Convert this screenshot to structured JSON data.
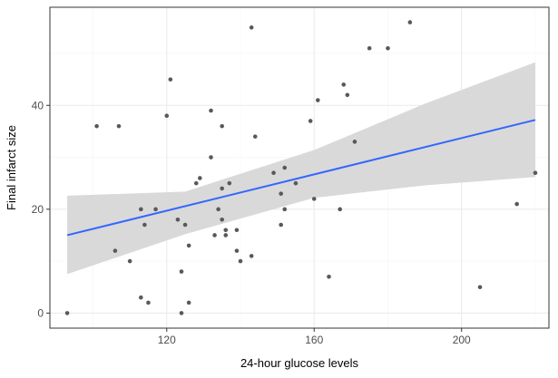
{
  "chart_data": {
    "type": "scatter",
    "xlabel": "24-hour glucose levels",
    "ylabel": "Final infarct size",
    "xlim": [
      88.3,
      223.7
    ],
    "ylim": [
      -2.9,
      58.9
    ],
    "xticks": [
      120,
      160,
      200
    ],
    "yticks": [
      0,
      20,
      40
    ],
    "grid": true,
    "panel_border": true,
    "colors": {
      "point": "#595959",
      "fit_line": "#3366ff",
      "ribbon": "#d9d9d9",
      "grid_major": "#ebebeb",
      "grid_minor": "#f5f5f5",
      "border": "#333333"
    },
    "points": [
      {
        "x": 93,
        "y": 0
      },
      {
        "x": 101,
        "y": 36
      },
      {
        "x": 107,
        "y": 36
      },
      {
        "x": 106,
        "y": 12
      },
      {
        "x": 110,
        "y": 10
      },
      {
        "x": 113,
        "y": 20
      },
      {
        "x": 114,
        "y": 17
      },
      {
        "x": 113,
        "y": 3
      },
      {
        "x": 115,
        "y": 2
      },
      {
        "x": 117,
        "y": 20
      },
      {
        "x": 120,
        "y": 38
      },
      {
        "x": 121,
        "y": 45
      },
      {
        "x": 123,
        "y": 18
      },
      {
        "x": 124,
        "y": 0
      },
      {
        "x": 124,
        "y": 8
      },
      {
        "x": 125,
        "y": 17
      },
      {
        "x": 126,
        "y": 13
      },
      {
        "x": 126,
        "y": 2
      },
      {
        "x": 128,
        "y": 25
      },
      {
        "x": 129,
        "y": 26
      },
      {
        "x": 132,
        "y": 39
      },
      {
        "x": 132,
        "y": 30
      },
      {
        "x": 133,
        "y": 15
      },
      {
        "x": 134,
        "y": 20
      },
      {
        "x": 135,
        "y": 36
      },
      {
        "x": 135,
        "y": 24
      },
      {
        "x": 135,
        "y": 18
      },
      {
        "x": 136,
        "y": 16
      },
      {
        "x": 136,
        "y": 15
      },
      {
        "x": 137,
        "y": 25
      },
      {
        "x": 139,
        "y": 16
      },
      {
        "x": 139,
        "y": 12
      },
      {
        "x": 140,
        "y": 10
      },
      {
        "x": 143,
        "y": 11
      },
      {
        "x": 143,
        "y": 55
      },
      {
        "x": 144,
        "y": 34
      },
      {
        "x": 149,
        "y": 27
      },
      {
        "x": 151,
        "y": 23
      },
      {
        "x": 151,
        "y": 17
      },
      {
        "x": 152,
        "y": 20
      },
      {
        "x": 152,
        "y": 28
      },
      {
        "x": 155,
        "y": 25
      },
      {
        "x": 159,
        "y": 37
      },
      {
        "x": 160,
        "y": 22
      },
      {
        "x": 161,
        "y": 41
      },
      {
        "x": 164,
        "y": 7
      },
      {
        "x": 167,
        "y": 20
      },
      {
        "x": 168,
        "y": 44
      },
      {
        "x": 169,
        "y": 42
      },
      {
        "x": 171,
        "y": 33
      },
      {
        "x": 175,
        "y": 51
      },
      {
        "x": 180,
        "y": 51
      },
      {
        "x": 186,
        "y": 56
      },
      {
        "x": 205,
        "y": 5
      },
      {
        "x": 215,
        "y": 21
      },
      {
        "x": 220,
        "y": 27
      }
    ],
    "fit": {
      "method": "linear",
      "x": [
        93,
        220
      ],
      "y": [
        15,
        37.2
      ],
      "ci_x": [
        93,
        125,
        160,
        190,
        220
      ],
      "ci_lower": [
        7.5,
        15.2,
        22.2,
        24.6,
        26.2
      ],
      "ci_upper": [
        22.6,
        23.4,
        31.4,
        40.3,
        48.3
      ]
    }
  }
}
